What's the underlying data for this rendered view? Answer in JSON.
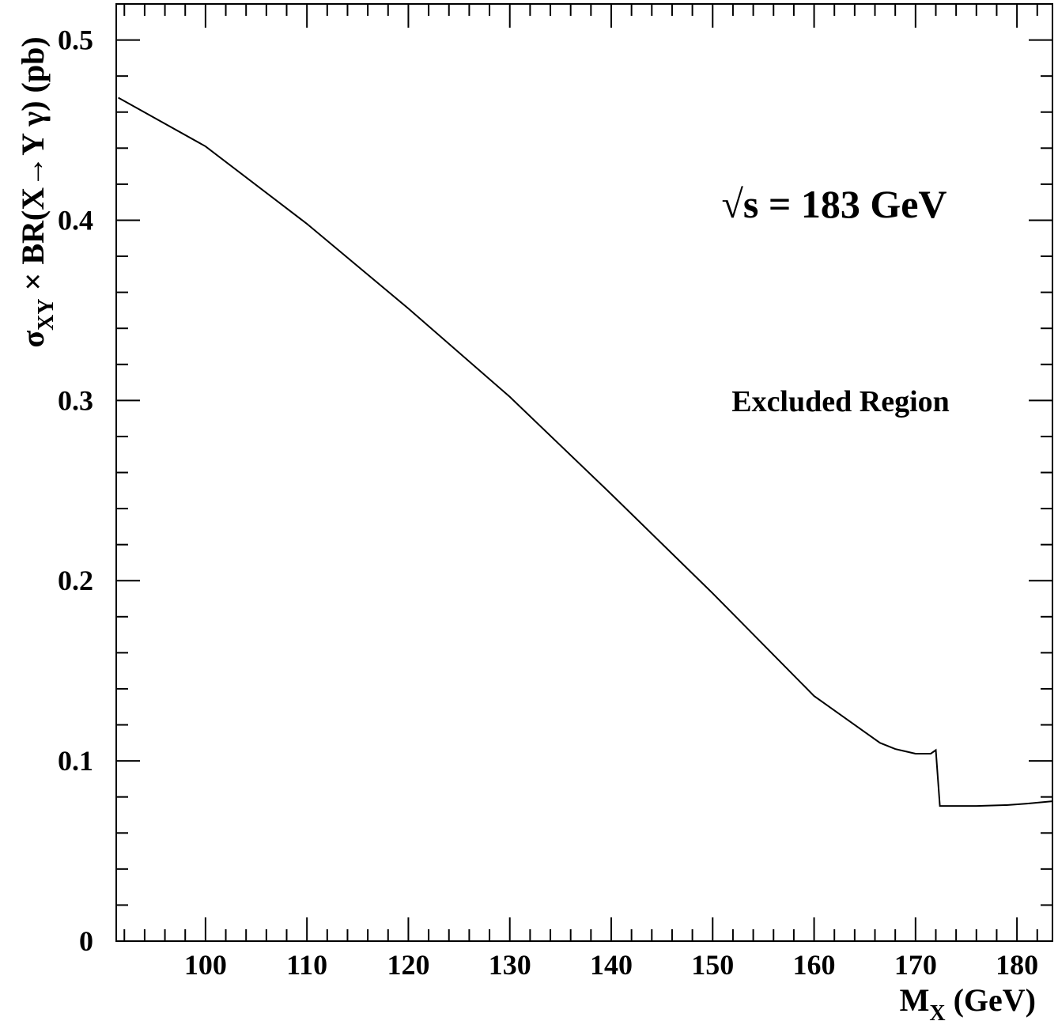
{
  "chart_data": {
    "type": "line",
    "x_label": {
      "main": "M",
      "sub": "X",
      "rest": " (GeV)"
    },
    "y_label": {
      "main": "σ",
      "sub": "XY",
      "rest": " × BR(X→Y γ)  (pb)"
    },
    "annotations": [
      "√s = 183 GeV",
      "Excluded Region"
    ],
    "x": [
      91.4,
      100,
      110,
      120,
      130,
      140,
      150,
      160,
      165,
      166.5,
      168,
      170,
      171.5,
      172,
      172.4,
      176,
      179,
      181,
      183.5
    ],
    "series": [
      {
        "color": "#000000",
        "values": [
          0.468,
          0.441,
          0.398,
          0.351,
          0.302,
          0.248,
          0.193,
          0.136,
          0.116,
          0.11,
          0.1066,
          0.104,
          0.104,
          0.106,
          0.075,
          0.075,
          0.0755,
          0.0763,
          0.0776
        ]
      }
    ],
    "xlim": [
      91.2,
      183.5
    ],
    "ylim": [
      0,
      0.52
    ],
    "xticks": [
      100,
      110,
      120,
      130,
      140,
      150,
      160,
      170,
      180
    ],
    "yticks": [
      0,
      0.1,
      0.2,
      0.3,
      0.4,
      0.5
    ],
    "xminorticks": [
      92,
      94,
      96,
      98,
      102,
      104,
      106,
      108,
      112,
      114,
      116,
      118,
      122,
      124,
      126,
      128,
      132,
      134,
      136,
      138,
      142,
      144,
      146,
      148,
      152,
      154,
      156,
      158,
      162,
      164,
      166,
      168,
      172,
      174,
      176,
      178,
      182
    ],
    "yminorticks": [
      0.02,
      0.04,
      0.06,
      0.08,
      0.12,
      0.14,
      0.16,
      0.18,
      0.22,
      0.24,
      0.26,
      0.28,
      0.32,
      0.34,
      0.36,
      0.38,
      0.42,
      0.44,
      0.46,
      0.48,
      0.52
    ],
    "grid": false
  }
}
